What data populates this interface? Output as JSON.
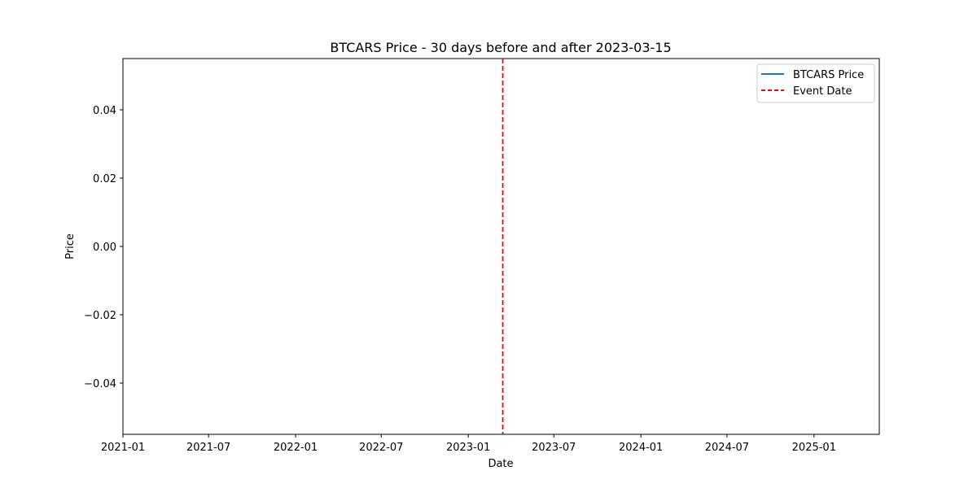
{
  "chart_data": {
    "type": "line",
    "title": "BTCARS Price - 30 days before and after 2023-03-15",
    "xlabel": "Date",
    "ylabel": "Price",
    "x_scale": "date",
    "xlim": [
      "2021-01-01",
      "2025-05-19"
    ],
    "ylim": [
      -0.055,
      0.055
    ],
    "x_ticks": [
      "2021-01",
      "2021-07",
      "2022-01",
      "2022-07",
      "2023-01",
      "2023-07",
      "2024-01",
      "2024-07",
      "2025-01"
    ],
    "y_ticks": [
      0.04,
      0.02,
      0.0,
      -0.02,
      -0.04
    ],
    "y_tick_labels": [
      "0.04",
      "0.02",
      "0.00",
      "−0.02",
      "−0.04"
    ],
    "grid": false,
    "legend_position": "top-right",
    "series": [
      {
        "name": "BTCARS Price",
        "style": "solid",
        "color": "#1f77b4",
        "x": [],
        "y": []
      }
    ],
    "annotations": [
      {
        "type": "vertical-line",
        "name": "Event Date",
        "x": "2023-03-15",
        "style": "dashed",
        "color": "#ff0000"
      }
    ]
  }
}
